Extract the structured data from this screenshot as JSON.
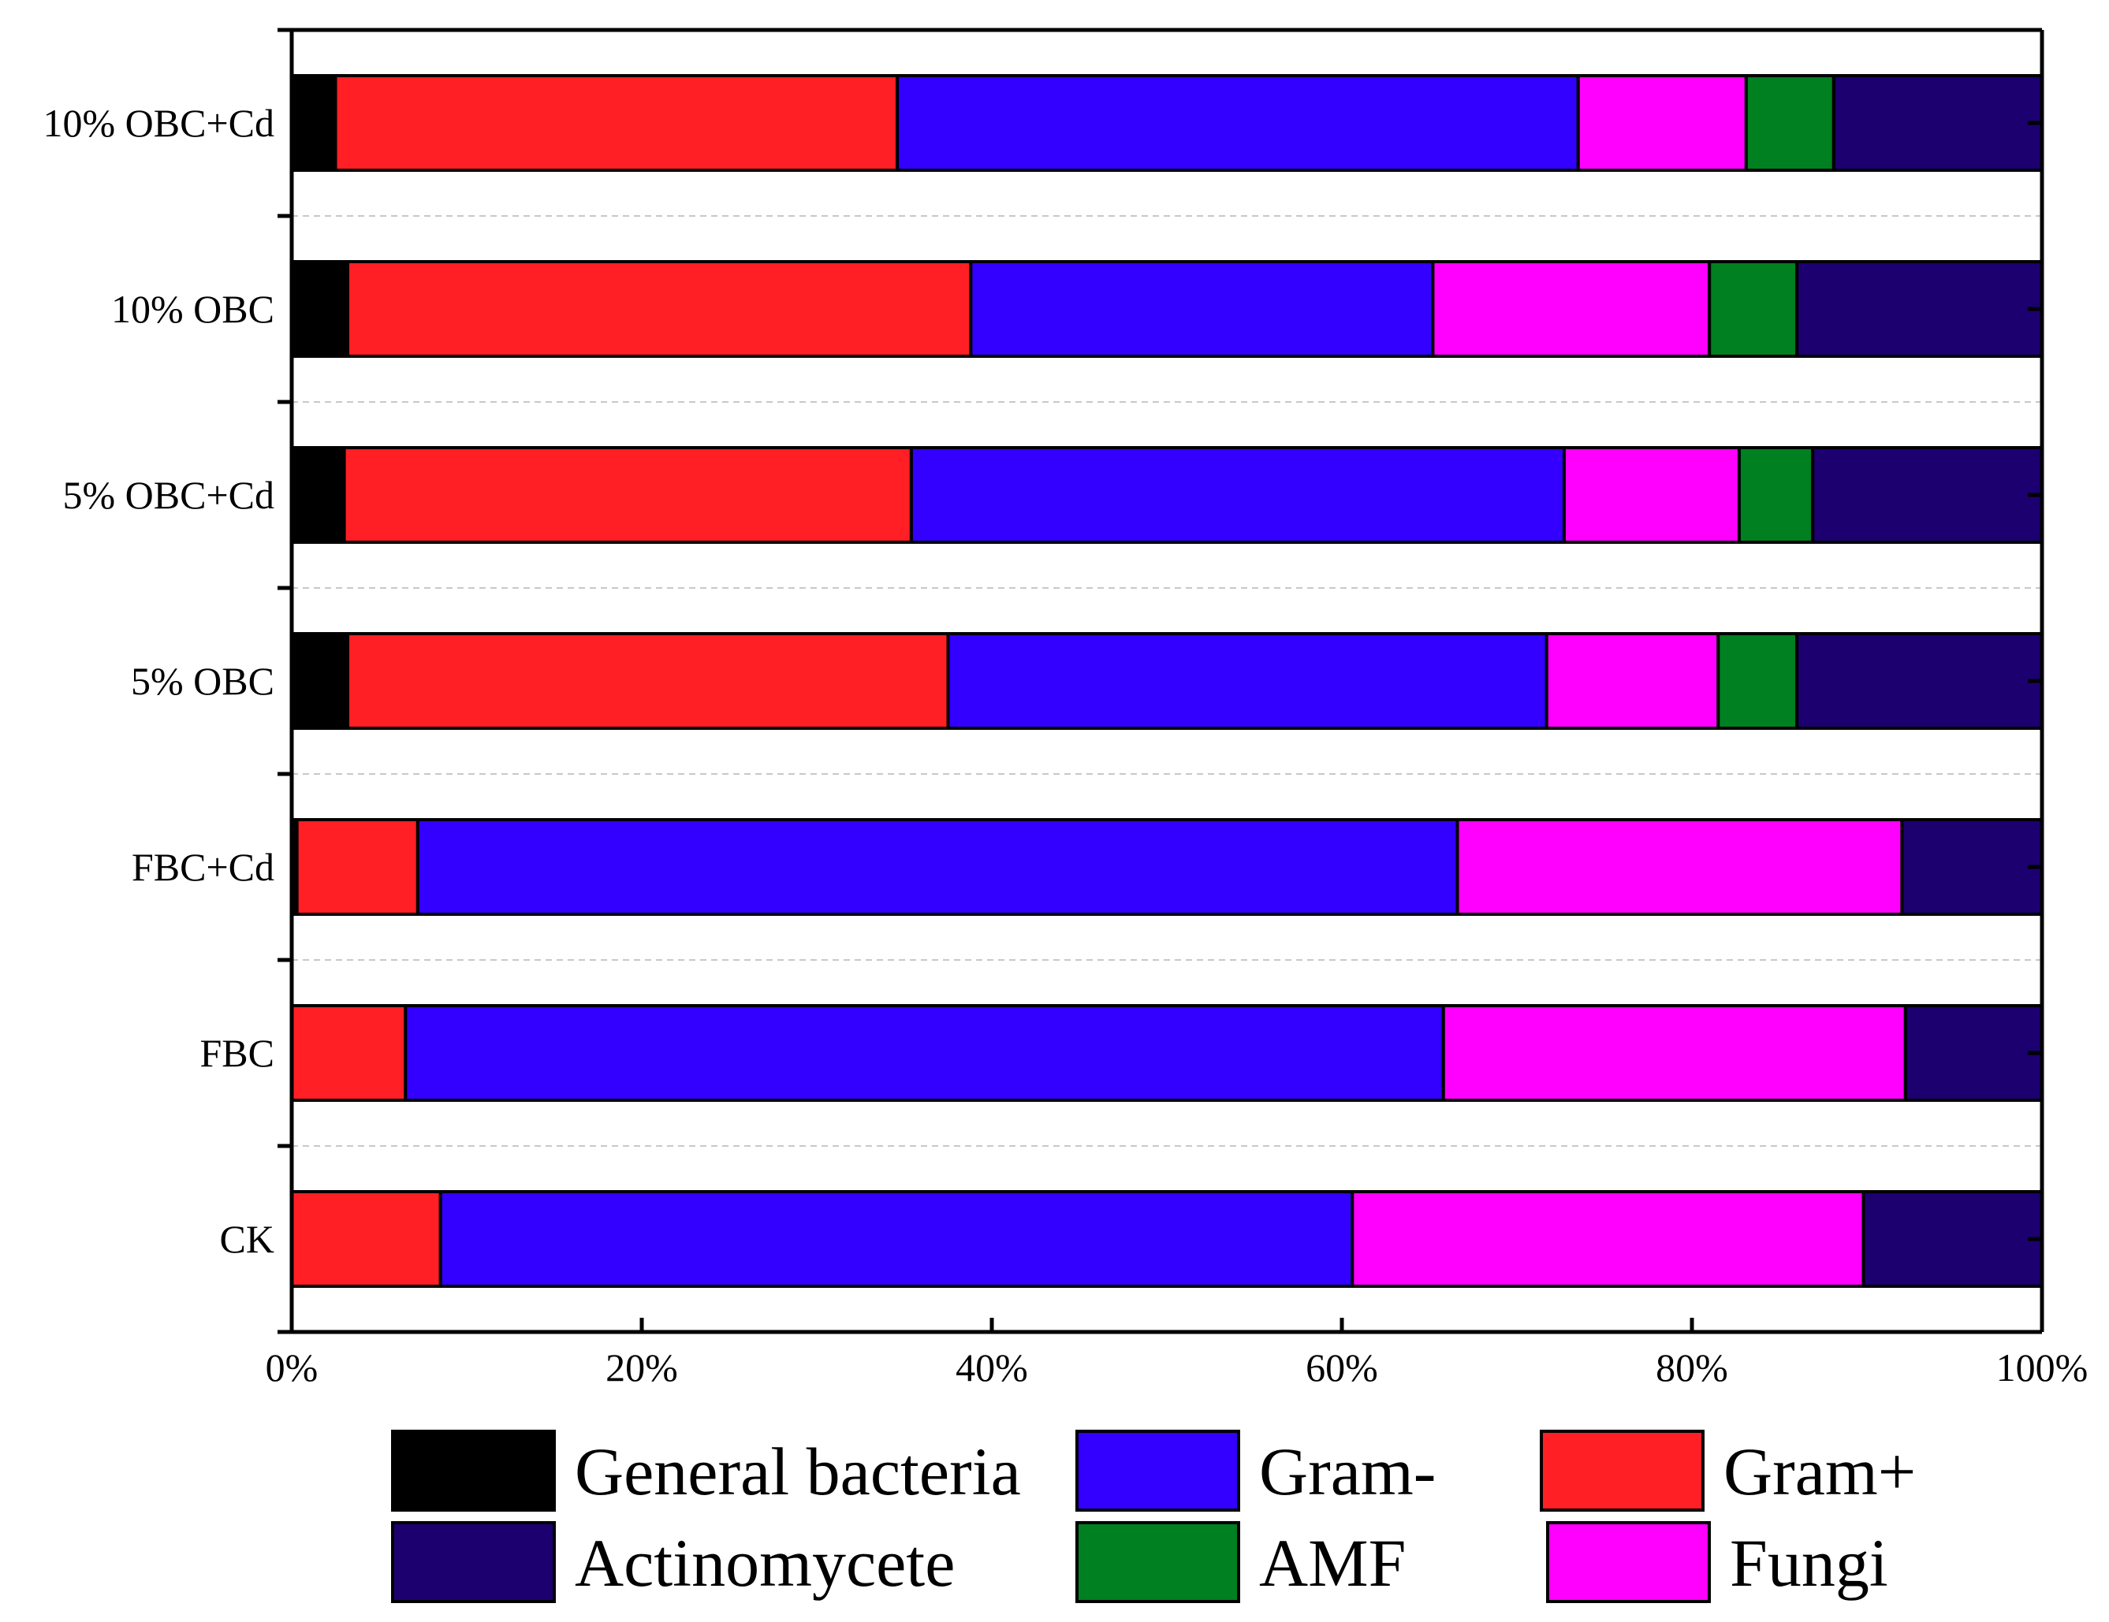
{
  "chart_data": {
    "type": "bar",
    "orientation": "horizontal",
    "stacked": true,
    "title": "",
    "xlabel": "",
    "ylabel": "",
    "xlim": [
      0,
      100
    ],
    "x_ticks": [
      "0%",
      "20%",
      "40%",
      "60%",
      "80%",
      "100%"
    ],
    "categories": [
      "10% OBC+Cd",
      "10% OBC",
      "5% OBC+Cd",
      "5% OBC",
      "FBC+Cd",
      "FBC",
      "CK"
    ],
    "series": [
      {
        "name": "General bacteria",
        "color": "#000000",
        "values": [
          2.5,
          3.2,
          3.0,
          3.2,
          0.3,
          0.0,
          0.0
        ]
      },
      {
        "name": "Gram+",
        "color": "#ff1f25",
        "values": [
          32.1,
          35.6,
          32.4,
          34.3,
          6.9,
          6.5,
          8.5
        ]
      },
      {
        "name": "Gram-",
        "color": "#3300ff",
        "values": [
          38.9,
          26.4,
          37.3,
          34.2,
          59.4,
          59.3,
          52.1
        ]
      },
      {
        "name": "Fungi",
        "color": "#ff00ff",
        "values": [
          9.6,
          15.8,
          10.0,
          9.8,
          25.4,
          26.4,
          29.2
        ]
      },
      {
        "name": "AMF",
        "color": "#008020",
        "values": [
          5.0,
          5.0,
          4.2,
          4.5,
          0.0,
          0.0,
          0.0
        ]
      },
      {
        "name": "Actinomycete",
        "color": "#1c0070",
        "values": [
          11.9,
          14.0,
          13.1,
          14.0,
          8.0,
          7.8,
          10.2
        ]
      }
    ],
    "legend": {
      "placement": "bottom",
      "columns": 3,
      "order": [
        "General bacteria",
        "Gram-",
        "Gram+",
        "Actinomycete",
        "AMF",
        "Fungi"
      ]
    },
    "grid": {
      "x": false,
      "y": "dashed separators between bars"
    }
  }
}
